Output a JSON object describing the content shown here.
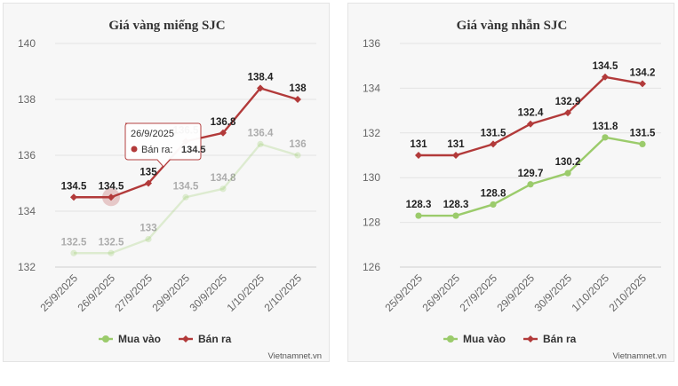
{
  "charts": [
    {
      "type": "line",
      "title": "Giá vàng miếng SJC",
      "categories": [
        "25/9/2025",
        "26/9/2025",
        "27/9/2025",
        "29/9/2025",
        "30/9/2025",
        "1/10/2025",
        "2/10/2025"
      ],
      "ylim": [
        132,
        140
      ],
      "yticks": [
        132,
        134,
        136,
        138,
        140
      ],
      "grid": true,
      "legend_position": "bottom",
      "series": [
        {
          "name": "Mua vào",
          "color": "#9bcb6b",
          "values": [
            132.5,
            132.5,
            133,
            134.5,
            134.8,
            136.4,
            136
          ],
          "labels": [
            "132.5",
            "132.5",
            "133",
            "134.5",
            "134.8",
            "136.4",
            "136"
          ]
        },
        {
          "name": "Bán ra",
          "color": "#b23a3a",
          "values": [
            134.5,
            134.5,
            135,
            136.5,
            136.8,
            138.4,
            138
          ],
          "labels": [
            "134.5",
            "134.5",
            "135",
            "136.5",
            "136.8",
            "138.4",
            "138"
          ]
        }
      ],
      "tooltip": {
        "index": 1,
        "date": "26/9/2025",
        "series_label": "Bán ra:",
        "value": "134.5"
      },
      "credit": "Vietnamnet.vn"
    },
    {
      "type": "line",
      "title": "Giá vàng nhẫn SJC",
      "categories": [
        "25/9/2025",
        "26/9/2025",
        "27/9/2025",
        "29/9/2025",
        "30/9/2025",
        "1/10/2025",
        "2/10/2025"
      ],
      "ylim": [
        126,
        136
      ],
      "yticks": [
        126,
        128,
        130,
        132,
        134,
        136
      ],
      "grid": true,
      "legend_position": "bottom",
      "series": [
        {
          "name": "Mua vào",
          "color": "#9bcb6b",
          "values": [
            128.3,
            128.3,
            128.8,
            129.7,
            130.2,
            131.8,
            131.5
          ],
          "labels": [
            "128.3",
            "128.3",
            "128.8",
            "129.7",
            "130.2",
            "131.8",
            "131.5"
          ]
        },
        {
          "name": "Bán ra",
          "color": "#b23a3a",
          "values": [
            131,
            131,
            131.5,
            132.4,
            132.9,
            134.5,
            134.2
          ],
          "labels": [
            "131",
            "131",
            "131.5",
            "132.4",
            "132.9",
            "134.5",
            "134.2"
          ]
        }
      ],
      "credit": "Vietnamnet.vn"
    }
  ]
}
